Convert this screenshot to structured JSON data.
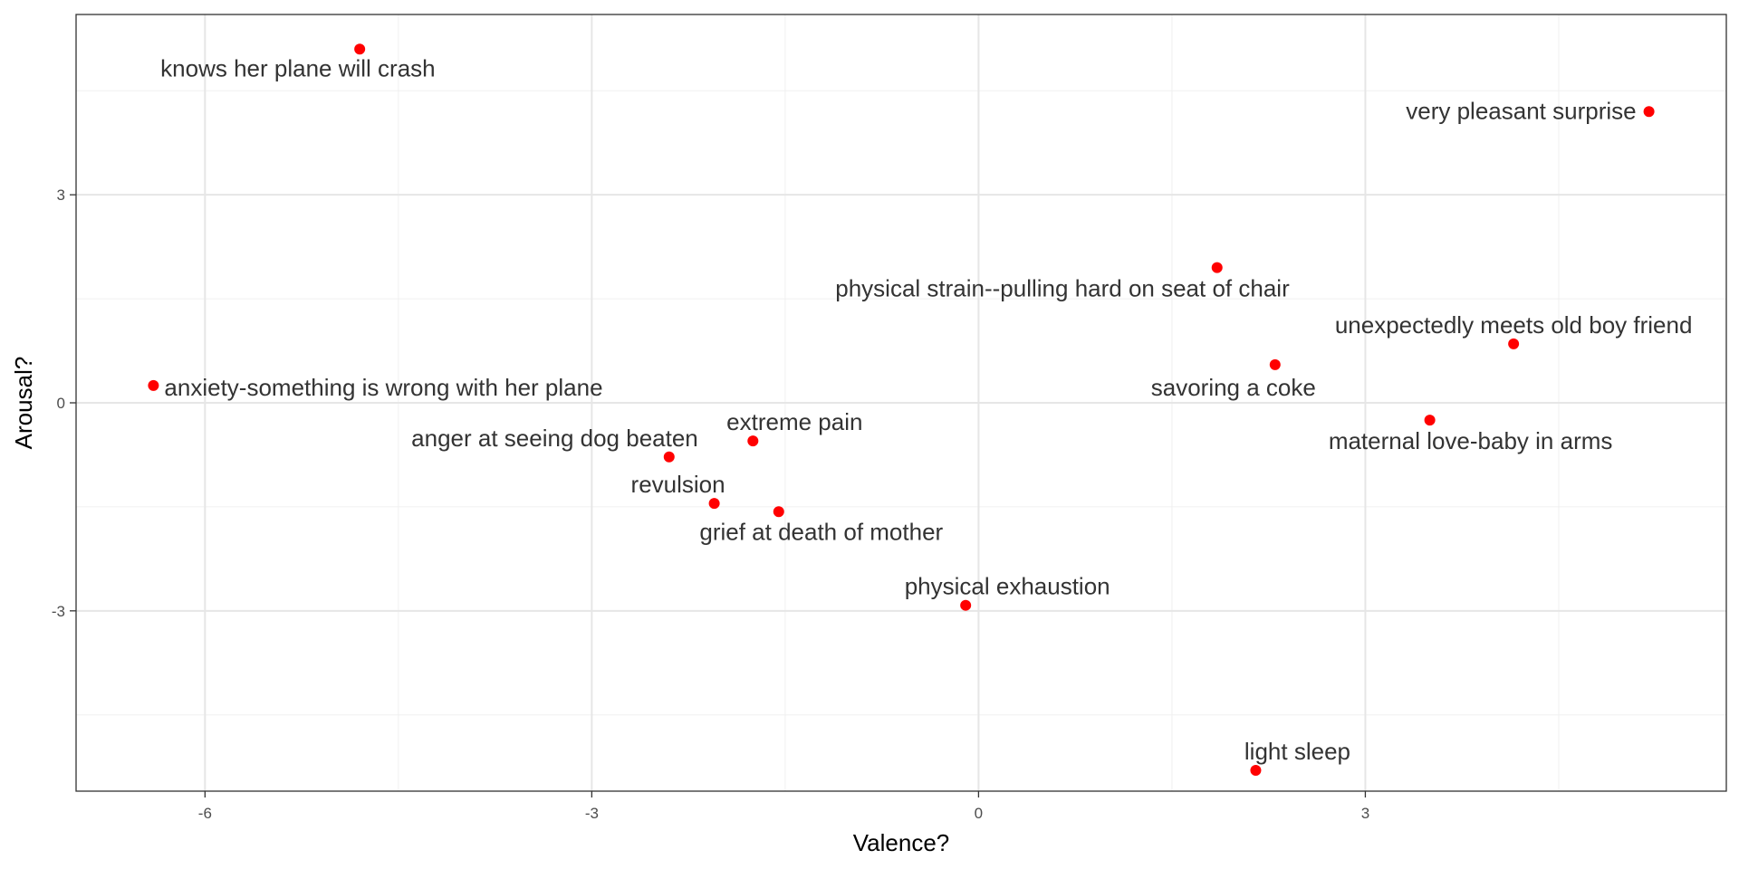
{
  "chart_data": {
    "type": "scatter",
    "title": "",
    "xlabel": "Valence?",
    "ylabel": "Arousal?",
    "xlim": [
      -7.0,
      5.8
    ],
    "ylim": [
      -5.6,
      5.6
    ],
    "x_ticks": [
      -6,
      -3,
      0,
      3
    ],
    "y_ticks": [
      -3,
      0,
      3
    ],
    "x_tick_labels": [
      "-6",
      "-3",
      "0",
      "3"
    ],
    "y_tick_labels": [
      "-3",
      "0",
      "3"
    ],
    "grid": true,
    "point_color": "#ff0000",
    "points": [
      {
        "label": "knows her plane will crash",
        "x": -4.8,
        "y": 5.1
      },
      {
        "label": "very pleasant surprise",
        "x": 5.2,
        "y": 4.2
      },
      {
        "label": "physical strain--pulling hard on seat of chair",
        "x": 1.85,
        "y": 1.95
      },
      {
        "label": "unexpectedly meets old boy friend",
        "x": 4.15,
        "y": 0.85
      },
      {
        "label": "savoring a coke",
        "x": 2.3,
        "y": 0.55
      },
      {
        "label": "anxiety-something is wrong with her plane",
        "x": -6.4,
        "y": 0.25
      },
      {
        "label": "maternal love-baby in arms",
        "x": 3.5,
        "y": -0.25
      },
      {
        "label": "extreme pain",
        "x": -1.75,
        "y": -0.55
      },
      {
        "label": "anger at seeing dog beaten",
        "x": -2.4,
        "y": -0.78
      },
      {
        "label": "revulsion",
        "x": -2.05,
        "y": -1.45
      },
      {
        "label": "grief at death of mother",
        "x": -1.55,
        "y": -1.57
      },
      {
        "label": "physical exhaustion",
        "x": -0.1,
        "y": -2.92
      },
      {
        "label": "light sleep",
        "x": 2.15,
        "y": -5.3
      }
    ]
  }
}
